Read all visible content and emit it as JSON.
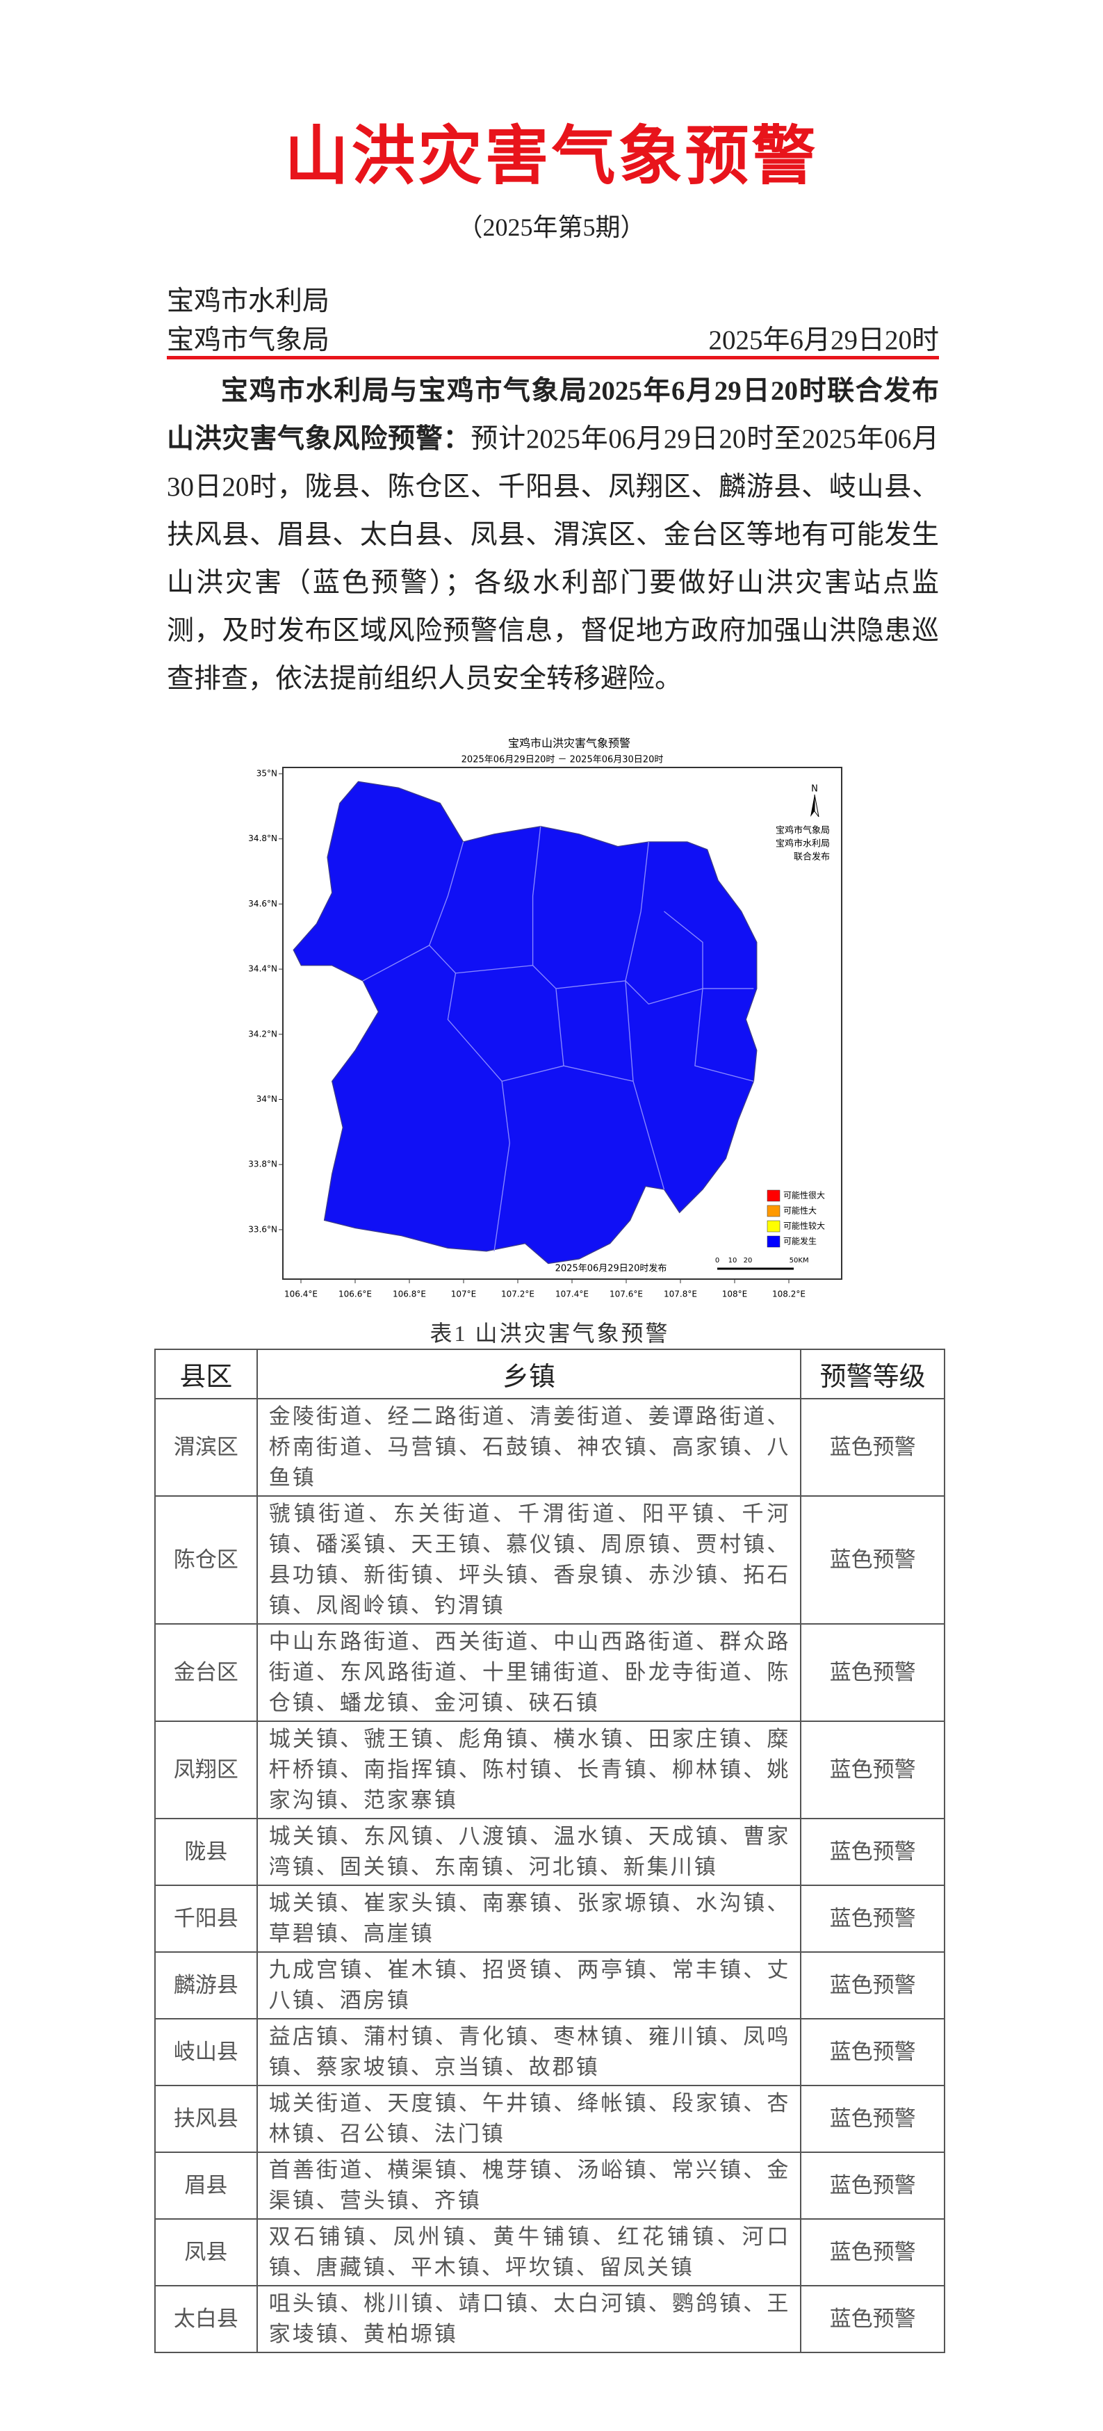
{
  "header": {
    "title": "山洪灾害气象预警",
    "issue": "（2025年第5期）",
    "orgs": [
      "宝鸡市水利局",
      "宝鸡市气象局"
    ],
    "date": "2025年6月29日20时"
  },
  "paragraph": {
    "lead": "宝鸡市水利局与宝鸡市气象局2025年6月29日20时联合发布山洪灾害气象风险预警：",
    "body": "预计2025年06月29日20时至2025年06月30日20时，陇县、陈仓区、千阳县、凤翔区、麟游县、岐山县、扶风县、眉县、太白县、凤县、渭滨区、金台区等地有可能发生山洪灾害（蓝色预警）；各级水利部门要做好山洪灾害站点监测，及时发布区域风险预警信息，督促地方政府加强山洪隐患巡查排查，依法提前组织人员安全转移避险。"
  },
  "map": {
    "title": "宝鸡市山洪灾害气象预警",
    "subtitle": "2025年06月29日20时 － 2025年06月30日20时",
    "lat_labels": [
      "35°N",
      "34.8°N",
      "34.6°N",
      "34.4°N",
      "34.2°N",
      "34°N",
      "33.8°N",
      "33.6°N"
    ],
    "lon_labels": [
      "106.4°E",
      "106.6°E",
      "106.8°E",
      "107°E",
      "107.2°E",
      "107.4°E",
      "107.6°E",
      "107.8°E",
      "108°E",
      "108.2°E"
    ],
    "north": "N",
    "publisher": [
      "宝鸡市气象局",
      "宝鸡市水利局",
      "联合发布"
    ],
    "legend": [
      {
        "label": "可能性很大",
        "color": "#ff0000"
      },
      {
        "label": "可能性大",
        "color": "#ff9900"
      },
      {
        "label": "可能性较大",
        "color": "#ffff00"
      },
      {
        "label": "可能发生",
        "color": "#0000ff"
      }
    ],
    "scale": [
      "0",
      "10",
      "20",
      "50",
      "KM"
    ],
    "footer": "2025年06月29日20时发布",
    "fill": "#1010f5"
  },
  "table": {
    "caption": "表1  山洪灾害气象预警",
    "headers": [
      "县区",
      "乡镇",
      "预警等级"
    ],
    "rows": [
      [
        "渭滨区",
        "金陵街道、经二路街道、清姜街道、姜谭路街道、桥南街道、马营镇、石鼓镇、神农镇、高家镇、八鱼镇",
        "蓝色预警"
      ],
      [
        "陈仓区",
        "虢镇街道、东关街道、千渭街道、阳平镇、千河镇、磻溪镇、天王镇、慕仪镇、周原镇、贾村镇、县功镇、新街镇、坪头镇、香泉镇、赤沙镇、拓石镇、凤阁岭镇、钓渭镇",
        "蓝色预警"
      ],
      [
        "金台区",
        "中山东路街道、西关街道、中山西路街道、群众路街道、东风路街道、十里铺街道、卧龙寺街道、陈仓镇、蟠龙镇、金河镇、硖石镇",
        "蓝色预警"
      ],
      [
        "凤翔区",
        "城关镇、虢王镇、彪角镇、横水镇、田家庄镇、糜杆桥镇、南指挥镇、陈村镇、长青镇、柳林镇、姚家沟镇、范家寨镇",
        "蓝色预警"
      ],
      [
        "陇县",
        "城关镇、东风镇、八渡镇、温水镇、天成镇、曹家湾镇、固关镇、东南镇、河北镇、新集川镇",
        "蓝色预警"
      ],
      [
        "千阳县",
        "城关镇、崔家头镇、南寨镇、张家塬镇、水沟镇、草碧镇、高崖镇",
        "蓝色预警"
      ],
      [
        "麟游县",
        "九成宫镇、崔木镇、招贤镇、两亭镇、常丰镇、丈八镇、酒房镇",
        "蓝色预警"
      ],
      [
        "岐山县",
        "益店镇、蒲村镇、青化镇、枣林镇、雍川镇、凤鸣镇、蔡家坡镇、京当镇、故郡镇",
        "蓝色预警"
      ],
      [
        "扶风县",
        "城关街道、天度镇、午井镇、绛帐镇、段家镇、杏林镇、召公镇、法门镇",
        "蓝色预警"
      ],
      [
        "眉县",
        "首善街道、横渠镇、槐芽镇、汤峪镇、常兴镇、金渠镇、营头镇、齐镇",
        "蓝色预警"
      ],
      [
        "凤县",
        "双石铺镇、凤州镇、黄牛铺镇、红花铺镇、河口镇、唐藏镇、平木镇、坪坎镇、留凤关镇",
        "蓝色预警"
      ],
      [
        "太白县",
        "咀头镇、桃川镇、靖口镇、太白河镇、鹦鸽镇、王家堎镇、黄柏塬镇",
        "蓝色预警"
      ]
    ]
  }
}
